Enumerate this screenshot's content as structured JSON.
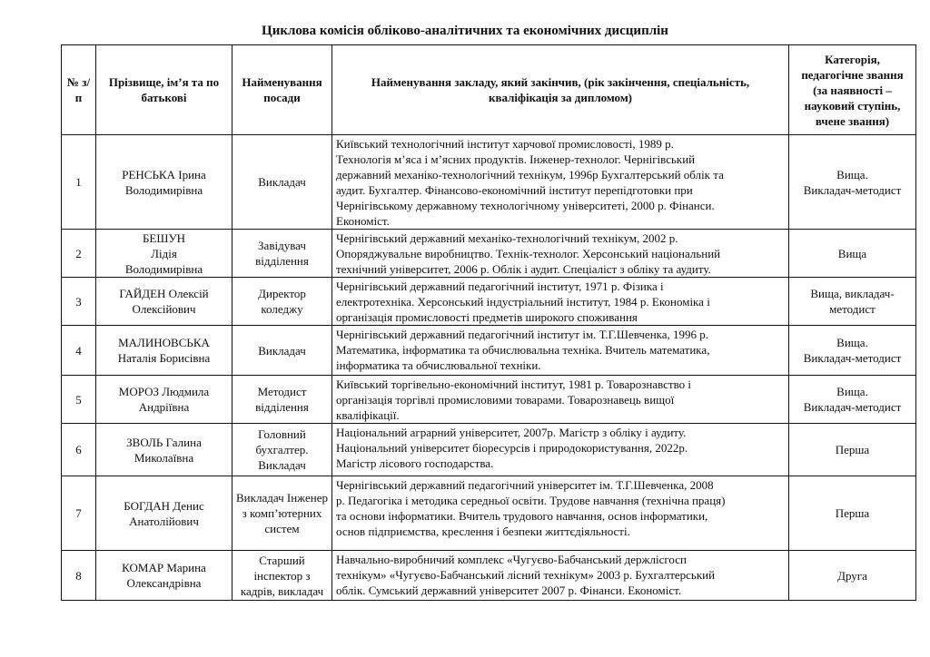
{
  "title": "Циклова комісія обліково-аналітичних та економічних дисциплін",
  "headers": {
    "num": "№\nз/п",
    "name": "Прізвище, ім’я та по батькові",
    "position": "Найменування посади",
    "education": "Найменування закладу, який закінчив, (рік закінчення, спеціальність, кваліфікація за дипломом)",
    "category": "Категорія, педагогічне звання (за наявності – науковий ступінь, вчене звання)"
  },
  "rows": [
    {
      "num": "1",
      "name": "РЕНСЬКА Ірина Володимирівна",
      "position": "Викладач",
      "education": "Київський технологічний інститут харчової промисловості, 1989 р.\nТехнологія м’яса і м’ясних продуктів. Інженер-технолог. Чернігівський\nдержавний механіко-технологічний технікум, 1996р Бухгалтерський облік та\nаудит. Бухгалтер. Фінансово-економічний інститут перепідготовки при\n Чернігівському державному технологічному університеті, 2000 р. Фінанси.\n Економіст.",
      "category": "Вища.\nВикладач-методист"
    },
    {
      "num": "2",
      "name": "БЕШУН\nЛідія\nВолодимирівна",
      "position": "Завідувач відділення",
      "education": "Чернігівський державний механіко-технологічний технікум, 2002 р.\nОпоряджувальне виробництво. Технік-технолог. Херсонський національний\nтехнічний університет, 2006 р. Облік і аудит. Спеціаліст з обліку та аудиту.",
      "category": "Вища"
    },
    {
      "num": "3",
      "name": "ГАЙДЕН Олексій Олексійович",
      "position": "Директор коледжу",
      "education": "Чернігівський державний педагогічний інститут, 1971 р. Фізика і\nелектротехніка. Херсонський індустріальний інститут, 1984 р. Економіка і\nорганізація промисловості предметів широкого споживання",
      "category": "Вища, викладач-методист"
    },
    {
      "num": "4",
      "name": "МАЛИНОВСЬКА Наталія Борисівна",
      "position": "Викладач",
      "education": "Чернігівський державний педагогічний інститут ім. Т.Г.Шевченка, 1996 р.\nМатематика, інформатика та обчислювальна техніка. Вчитель математика,\nінформатика та обчислювальної техніки.",
      "category": "Вища.\nВикладач-методист"
    },
    {
      "num": "5",
      "name": "МОРОЗ Людмила Андріївна",
      "position": "Методист відділення",
      "education": "Київський торгівельно-економічний інститут, 1981 р. Товарознавство і\nорганізація торгівлі промисловими товарами. Товарознавець вищої\nкваліфікації.",
      "category": "Вища.\nВикладач-методист"
    },
    {
      "num": "6",
      "name": "ЗВОЛЬ Галина Миколаївна",
      "position": "Головний бухгалтер. Викладач",
      "education": "Національний аграрний університет, 2007р. Магістр з обліку і аудиту.\nНаціональний університет біоресурсів і природокористування,  2022р.\nМагістр лісового господарства.",
      "category": "Перша"
    },
    {
      "num": "7",
      "name": "БОГДАН Денис Анатолійович",
      "position": "Викладач Інженер з комп’ютерних систем",
      "education": "Чернігівський державний педагогічний університет  ім. Т.Г.Шевченка, 2008\nр. Педагогіка і методика середньої освіти. Трудове навчання (технічна праця)\nта основи інформатики. Вчитель трудового навчання, основ інформатики,\nоснов підприємства, креслення і безпеки життєдіяльності.",
      "category": "Перша"
    },
    {
      "num": "8",
      "name": "КОМАР Марина Олександрівна",
      "position": "Старший інспектор з кадрів, викладач",
      "education": "Навчально-виробничий комплекс «Чугуєво-Бабчанський держлісгосп\nтехнікум» «Чугуєво-Бабчанський лісний технікум» 2003 р. Бухгалтерський\nоблік. Сумський державний університет 2007 р. Фінанси. Економіст.",
      "category": "Друга"
    }
  ]
}
